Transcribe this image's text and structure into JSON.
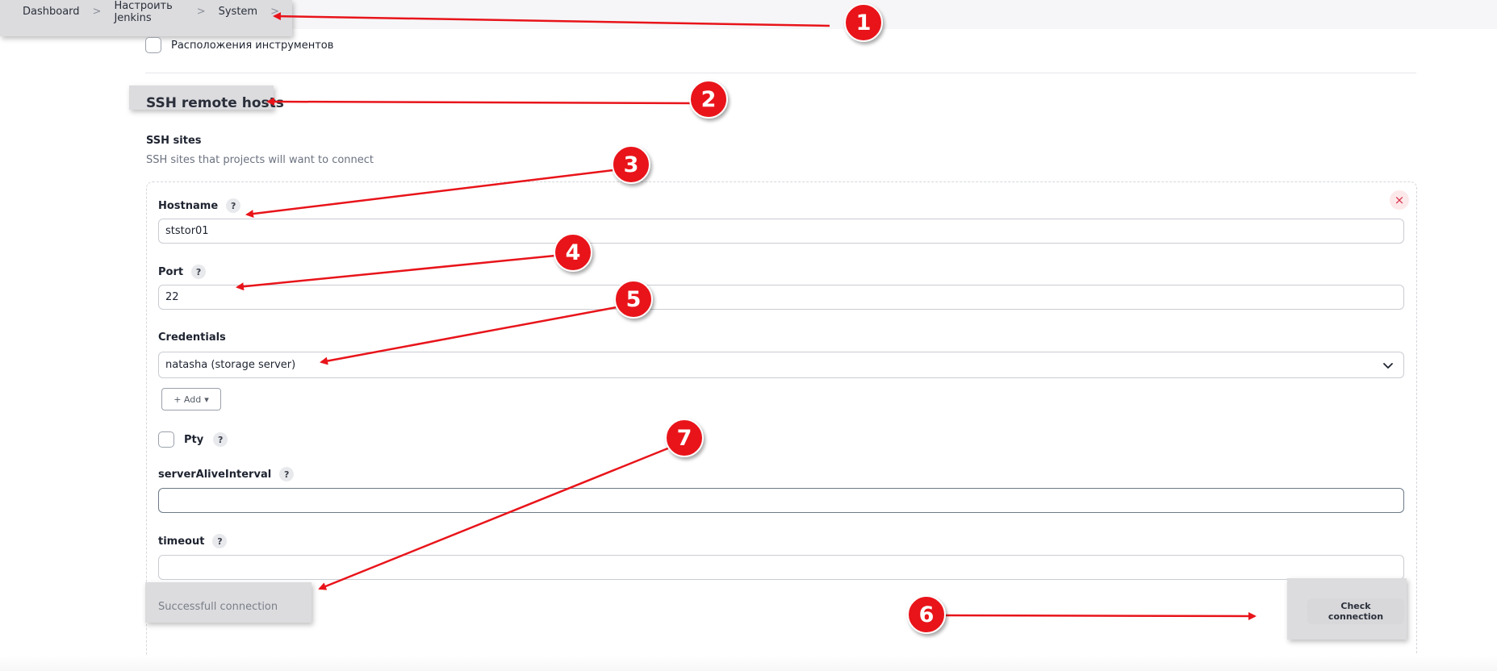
{
  "breadcrumb": {
    "items": [
      "Dashboard",
      "Настроить Jenkins",
      "System"
    ],
    "separator": ">"
  },
  "tool_locations": {
    "label": "Расположения инструментов",
    "checked": false
  },
  "section": {
    "title": "SSH remote hosts"
  },
  "ssh_sites": {
    "label": "SSH sites",
    "description": "SSH sites that projects will want to connect",
    "hostname": {
      "label": "Hostname",
      "value": "ststor01"
    },
    "port": {
      "label": "Port",
      "value": "22"
    },
    "credentials": {
      "label": "Credentials",
      "selected": "natasha (storage server)"
    },
    "add_button": {
      "label": "+ Add",
      "caret": "▾"
    },
    "pty": {
      "label": "Pty",
      "checked": false
    },
    "server_alive_interval": {
      "label": "serverAliveInterval",
      "value": ""
    },
    "timeout": {
      "label": "timeout",
      "value": ""
    },
    "status": "Successfull connection",
    "check_button": "Check connection",
    "help_glyph": "?",
    "close_glyph": "×"
  },
  "annotations": {
    "color": "#e8141a",
    "badges": [
      "1",
      "2",
      "3",
      "4",
      "5",
      "6",
      "7"
    ]
  }
}
